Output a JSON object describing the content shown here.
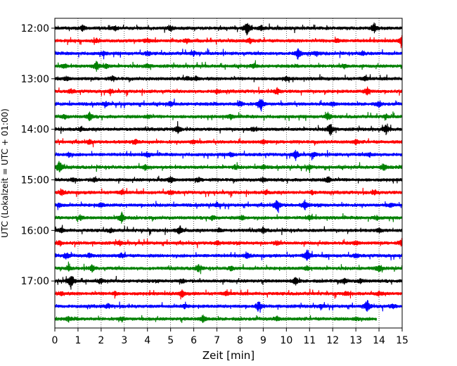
{
  "chart_data": {
    "type": "line",
    "title": "",
    "xlabel": "Zeit  [min]",
    "ylabel": "UTC (Lokalzeit = UTC + 01:00)",
    "xlim": [
      0,
      15
    ],
    "xticks": [
      0,
      1,
      2,
      3,
      4,
      5,
      6,
      7,
      8,
      9,
      10,
      11,
      12,
      13,
      14,
      15
    ],
    "xtick_labels": [
      "0",
      "1",
      "2",
      "3",
      "4",
      "5",
      "6",
      "7",
      "8",
      "9",
      "10",
      "11",
      "12",
      "13",
      "14",
      "15"
    ],
    "y_tick_labels": [
      "12:00",
      "13:00",
      "14:00",
      "15:00",
      "16:00",
      "17:00"
    ],
    "y_tick_trace_index": [
      0,
      4,
      8,
      12,
      16,
      20
    ],
    "grid_x": true,
    "grid_style": "dotted",
    "trace_interval_min": 15,
    "color_cycle": [
      "#000000",
      "#ff0000",
      "#0000ff",
      "#008000"
    ],
    "traces_count": 24,
    "last_trace_end_min": 13.9,
    "series": [
      {
        "start": "12:00",
        "color": "#000000",
        "events": [
          [
            1.2,
            0.4
          ],
          [
            2.6,
            0.3
          ],
          [
            5.0,
            0.3
          ],
          [
            8.3,
            1.0
          ],
          [
            8.9,
            0.3
          ],
          [
            13.8,
            0.7
          ]
        ]
      },
      {
        "start": "12:15",
        "color": "#ff0000",
        "events": [
          [
            1.8,
            0.3
          ],
          [
            4.0,
            0.3
          ],
          [
            5.7,
            0.3
          ],
          [
            8.4,
            0.3
          ],
          [
            12.2,
            0.3
          ],
          [
            15.0,
            0.9
          ]
        ]
      },
      {
        "start": "12:30",
        "color": "#0000ff",
        "events": [
          [
            2.1,
            0.3
          ],
          [
            4.0,
            0.3
          ],
          [
            6.0,
            0.3
          ],
          [
            10.5,
            0.9
          ],
          [
            11.3,
            0.3
          ],
          [
            13.3,
            0.3
          ]
        ]
      },
      {
        "start": "12:45",
        "color": "#008000",
        "events": [
          [
            0.4,
            0.3
          ],
          [
            1.8,
            0.7
          ],
          [
            2.2,
            0.4
          ],
          [
            4.0,
            0.3
          ],
          [
            8.6,
            0.3
          ],
          [
            12.5,
            0.3
          ]
        ]
      },
      {
        "start": "13:00",
        "color": "#000000",
        "events": [
          [
            0.5,
            0.3
          ],
          [
            2.5,
            0.3
          ],
          [
            5.7,
            0.3
          ],
          [
            6.1,
            0.3
          ],
          [
            10.0,
            0.3
          ],
          [
            13.4,
            0.3
          ]
        ]
      },
      {
        "start": "13:15",
        "color": "#ff0000",
        "events": [
          [
            0.7,
            0.3
          ],
          [
            2.4,
            0.3
          ],
          [
            7.0,
            0.3
          ],
          [
            9.6,
            0.5
          ],
          [
            13.5,
            0.6
          ]
        ]
      },
      {
        "start": "13:30",
        "color": "#0000ff",
        "events": [
          [
            2.2,
            0.3
          ],
          [
            5.0,
            0.3
          ],
          [
            8.0,
            0.4
          ],
          [
            8.9,
            1.1
          ],
          [
            12.0,
            0.3
          ],
          [
            14.0,
            0.4
          ]
        ]
      },
      {
        "start": "13:45",
        "color": "#008000",
        "events": [
          [
            0.4,
            0.3
          ],
          [
            1.5,
            0.6
          ],
          [
            4.0,
            0.3
          ],
          [
            7.6,
            0.3
          ],
          [
            11.8,
            0.6
          ],
          [
            14.3,
            0.3
          ]
        ]
      },
      {
        "start": "14:00",
        "color": "#000000",
        "events": [
          [
            1.1,
            0.3
          ],
          [
            5.3,
            0.6
          ],
          [
            8.6,
            0.3
          ],
          [
            11.9,
            1.0
          ],
          [
            14.3,
            0.7
          ]
        ]
      },
      {
        "start": "14:15",
        "color": "#ff0000",
        "events": [
          [
            1.5,
            0.3
          ],
          [
            3.5,
            0.3
          ],
          [
            6.0,
            0.3
          ],
          [
            9.0,
            0.3
          ],
          [
            13.0,
            0.3
          ]
        ]
      },
      {
        "start": "14:30",
        "color": "#0000ff",
        "events": [
          [
            0.6,
            0.3
          ],
          [
            4.0,
            0.3
          ],
          [
            7.6,
            0.3
          ],
          [
            10.4,
            0.7
          ],
          [
            11.2,
            0.3
          ],
          [
            13.6,
            0.3
          ]
        ]
      },
      {
        "start": "14:45",
        "color": "#008000",
        "events": [
          [
            0.2,
            1.0
          ],
          [
            3.9,
            0.4
          ],
          [
            7.8,
            0.3
          ],
          [
            9.0,
            0.3
          ],
          [
            11.0,
            0.3
          ],
          [
            14.2,
            0.5
          ]
        ]
      },
      {
        "start": "15:00",
        "color": "#000000",
        "events": [
          [
            0.8,
            0.3
          ],
          [
            1.7,
            0.3
          ],
          [
            5.0,
            0.5
          ],
          [
            6.2,
            0.3
          ],
          [
            9.0,
            0.3
          ],
          [
            11.8,
            0.6
          ]
        ]
      },
      {
        "start": "15:15",
        "color": "#ff0000",
        "events": [
          [
            0.3,
            0.4
          ],
          [
            2.9,
            0.3
          ],
          [
            5.0,
            0.3
          ],
          [
            9.1,
            0.3
          ],
          [
            11.1,
            0.3
          ],
          [
            13.8,
            0.3
          ]
        ]
      },
      {
        "start": "15:30",
        "color": "#0000ff",
        "events": [
          [
            0.2,
            0.3
          ],
          [
            2.0,
            0.3
          ],
          [
            7.0,
            0.3
          ],
          [
            9.6,
            0.9
          ],
          [
            10.8,
            0.7
          ],
          [
            14.5,
            0.3
          ]
        ]
      },
      {
        "start": "15:45",
        "color": "#008000",
        "events": [
          [
            1.1,
            0.3
          ],
          [
            2.9,
            0.9
          ],
          [
            6.8,
            0.3
          ],
          [
            8.1,
            0.3
          ],
          [
            11.0,
            0.3
          ],
          [
            13.9,
            0.3
          ]
        ]
      },
      {
        "start": "16:00",
        "color": "#000000",
        "events": [
          [
            0.3,
            0.3
          ],
          [
            2.4,
            0.3
          ],
          [
            5.4,
            0.7
          ],
          [
            7.1,
            0.3
          ],
          [
            9.0,
            0.4
          ],
          [
            14.0,
            0.3
          ]
        ]
      },
      {
        "start": "16:15",
        "color": "#ff0000",
        "events": [
          [
            0.2,
            0.3
          ],
          [
            2.8,
            0.3
          ],
          [
            7.0,
            0.3
          ],
          [
            9.6,
            0.3
          ],
          [
            13.0,
            0.3
          ],
          [
            15.0,
            0.6
          ]
        ]
      },
      {
        "start": "16:30",
        "color": "#0000ff",
        "events": [
          [
            0.5,
            0.5
          ],
          [
            1.5,
            0.3
          ],
          [
            2.9,
            0.3
          ],
          [
            8.3,
            0.4
          ],
          [
            10.9,
            0.9
          ],
          [
            13.0,
            0.3
          ]
        ]
      },
      {
        "start": "16:45",
        "color": "#008000",
        "events": [
          [
            0.6,
            0.3
          ],
          [
            1.6,
            0.5
          ],
          [
            6.2,
            0.6
          ],
          [
            7.6,
            0.3
          ],
          [
            10.9,
            0.3
          ],
          [
            14.0,
            0.5
          ]
        ]
      },
      {
        "start": "17:00",
        "color": "#000000",
        "events": [
          [
            0.7,
            1.2
          ],
          [
            2.0,
            0.3
          ],
          [
            5.5,
            0.3
          ],
          [
            10.4,
            0.6
          ],
          [
            12.5,
            0.4
          ],
          [
            13.2,
            0.3
          ]
        ]
      },
      {
        "start": "17:15",
        "color": "#ff0000",
        "events": [
          [
            0.3,
            0.3
          ],
          [
            2.6,
            0.3
          ],
          [
            5.5,
            0.5
          ],
          [
            7.4,
            0.3
          ],
          [
            12.6,
            0.3
          ],
          [
            14.0,
            0.3
          ]
        ]
      },
      {
        "start": "17:30",
        "color": "#0000ff",
        "events": [
          [
            2.3,
            0.3
          ],
          [
            5.6,
            0.3
          ],
          [
            8.8,
            0.8
          ],
          [
            11.5,
            0.3
          ],
          [
            13.5,
            0.9
          ],
          [
            14.6,
            0.3
          ]
        ]
      },
      {
        "start": "17:45",
        "color": "#008000",
        "events": [
          [
            0.6,
            0.3
          ],
          [
            2.9,
            0.3
          ],
          [
            6.4,
            0.6
          ],
          [
            9.6,
            0.3
          ],
          [
            13.0,
            0.3
          ]
        ]
      }
    ]
  }
}
